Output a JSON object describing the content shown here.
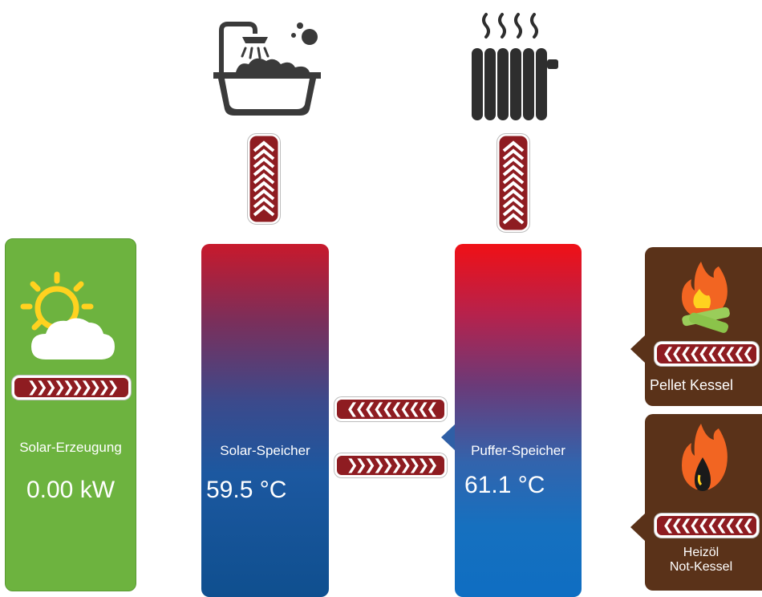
{
  "solar": {
    "label": "Solar-Erzeugung",
    "value": "0.00 kW",
    "icon": "sun-cloud-icon",
    "flow_arrows": "❯❯❯❯❯❯❯❯❯❯"
  },
  "solar_storage": {
    "label": "Solar-Speicher",
    "temperature": "59.5 °C",
    "consumer_icon": "bathtub-shower-icon"
  },
  "buffer_storage": {
    "label": "Puffer-Speicher",
    "temperature": "61.1 °C",
    "consumer_icon": "radiator-icon"
  },
  "transfer": {
    "arrows_left": "❮❮❮❮❮❮❮❮❮❮",
    "arrows_right": "❯❯❯❯❯❯❯❯❯❯"
  },
  "pellet_boiler": {
    "label": "Pellet Kessel",
    "icon": "fire-wood-icon",
    "flow_arrows": "❮❮❮❮❮❮❮❮❮❮"
  },
  "oil_boiler": {
    "label_line1": "Heizöl",
    "label_line2": "Not-Kessel",
    "icon": "fire-oil-drop-icon",
    "flow_arrows": "❮❮❮❮❮❮❮❮❮❮"
  },
  "colors": {
    "solar_green": "#6db33f",
    "boiler_brown": "#5a3219",
    "arrow_red": "#8e1c21",
    "hot_red": "#f01016",
    "cold_blue": "#0f6ec2"
  }
}
